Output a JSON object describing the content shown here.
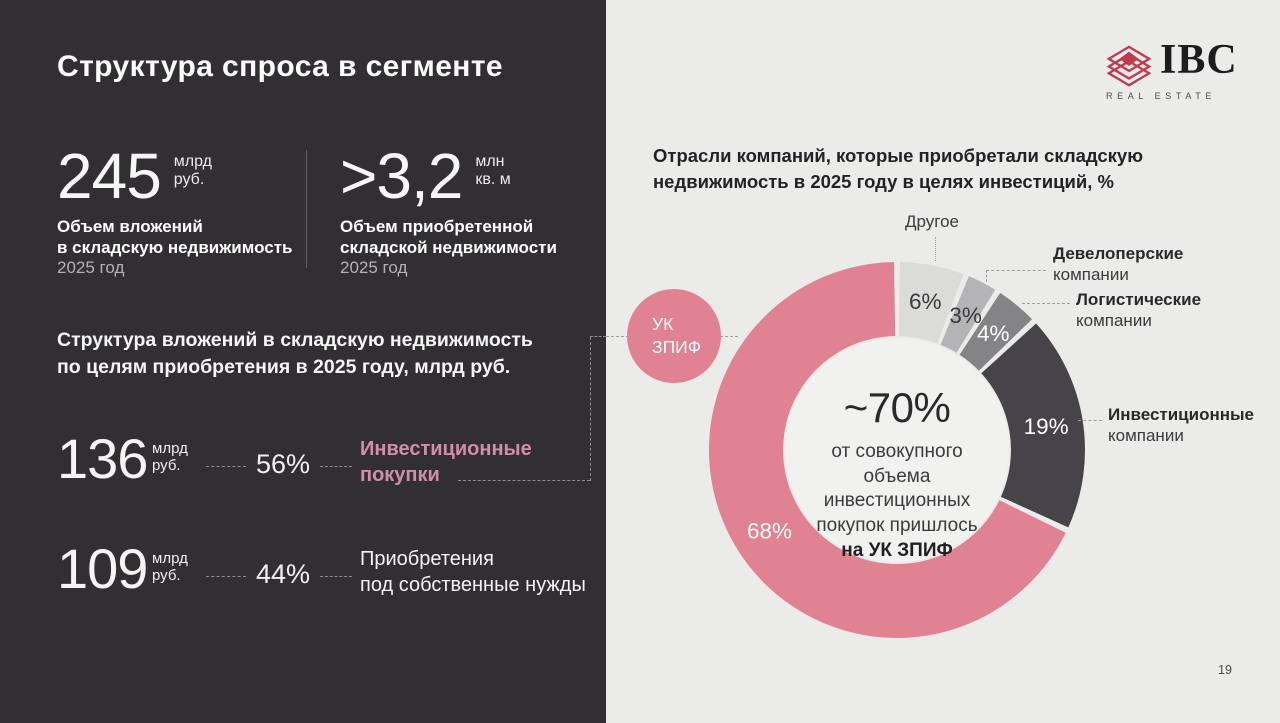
{
  "theme": {
    "left_bg": "#312f32",
    "right_bg": "#ebebe9",
    "pink": "#e18293",
    "pink_text": "#d18fa7",
    "logo_red": "#c2384d",
    "hole_fill": "#f1f1ef"
  },
  "left_panel": {
    "title": "Структура спроса в сегменте",
    "stat1": {
      "value": "245",
      "unit_line1": "млрд",
      "unit_line2": "руб.",
      "desc_line1": "Объем вложений",
      "desc_line2": "в складскую недвижимость",
      "desc_line3": "2025 год"
    },
    "stat2": {
      "value": ">3,2",
      "unit_line1": "млн",
      "unit_line2": "кв. м",
      "desc_line1": "Объем приобретенной",
      "desc_line2": "складской недвижимости",
      "desc_line3": "2025 год"
    },
    "section_title_line1": "Структура вложений в складскую недвижимость",
    "section_title_line2": "по целям приобретения в 2025 году, млрд руб.",
    "rows": [
      {
        "value": "136",
        "unit_line1": "млрд",
        "unit_line2": "руб.",
        "percent": "56%",
        "label_line1": "Инвестиционные",
        "label_line2": "покупки"
      },
      {
        "value": "109",
        "unit_line1": "млрд",
        "unit_line2": "руб.",
        "percent": "44%",
        "label_line1": "Приобретения",
        "label_line2": "под собственные нужды"
      }
    ]
  },
  "right_panel": {
    "title_line1": "Отрасли компаний, которые приобретали складскую",
    "title_line2": "недвижимость в 2025 году в целях инвестиций, %",
    "bubble_line1": "УК",
    "bubble_line2": "ЗПИФ",
    "callouts": [
      {
        "line1": "Другое",
        "line2": ""
      },
      {
        "line1": "Девелоперские",
        "line2": "компании"
      },
      {
        "line1": "Логистические",
        "line2": "компании"
      },
      {
        "line1": "Инвестиционные",
        "line2": "компании"
      }
    ],
    "center": {
      "headline": "~70%",
      "line1": "от совокупного",
      "line2": "объема",
      "line3": "инвестиционных",
      "line4": "покупок пришлось",
      "line5": "на УК ЗПИФ"
    },
    "page_number": "19"
  },
  "logo": {
    "name": "IBC",
    "subtitle": "REAL ESTATE"
  },
  "chart_data": {
    "type": "pie",
    "subtype": "donut",
    "title": "Отрасли компаний, которые приобретали складскую недвижимость в 2025 году в целях инвестиций, %",
    "units": "%",
    "start_angle_deg": 0,
    "direction": "clockwise",
    "segments": [
      {
        "label": "Другое",
        "value": 6,
        "color": "#dbdbd9",
        "text_color": "#39383b"
      },
      {
        "label": "Девелоперские компании",
        "value": 3,
        "color": "#b4b3b5",
        "text_color": "#39383b"
      },
      {
        "label": "Логистические компании",
        "value": 4,
        "color": "#848386",
        "text_color": "#ffffff"
      },
      {
        "label": "Инвестиционные компании",
        "value": 19,
        "color": "#464448",
        "text_color": "#ffffff"
      },
      {
        "label": "УК ЗПИФ",
        "value": 68,
        "color": "#e18293",
        "text_color": "#ffffff"
      }
    ],
    "annotation": "~70% от совокупного объема инвестиционных покупок пришлось на УК ЗПИФ"
  }
}
